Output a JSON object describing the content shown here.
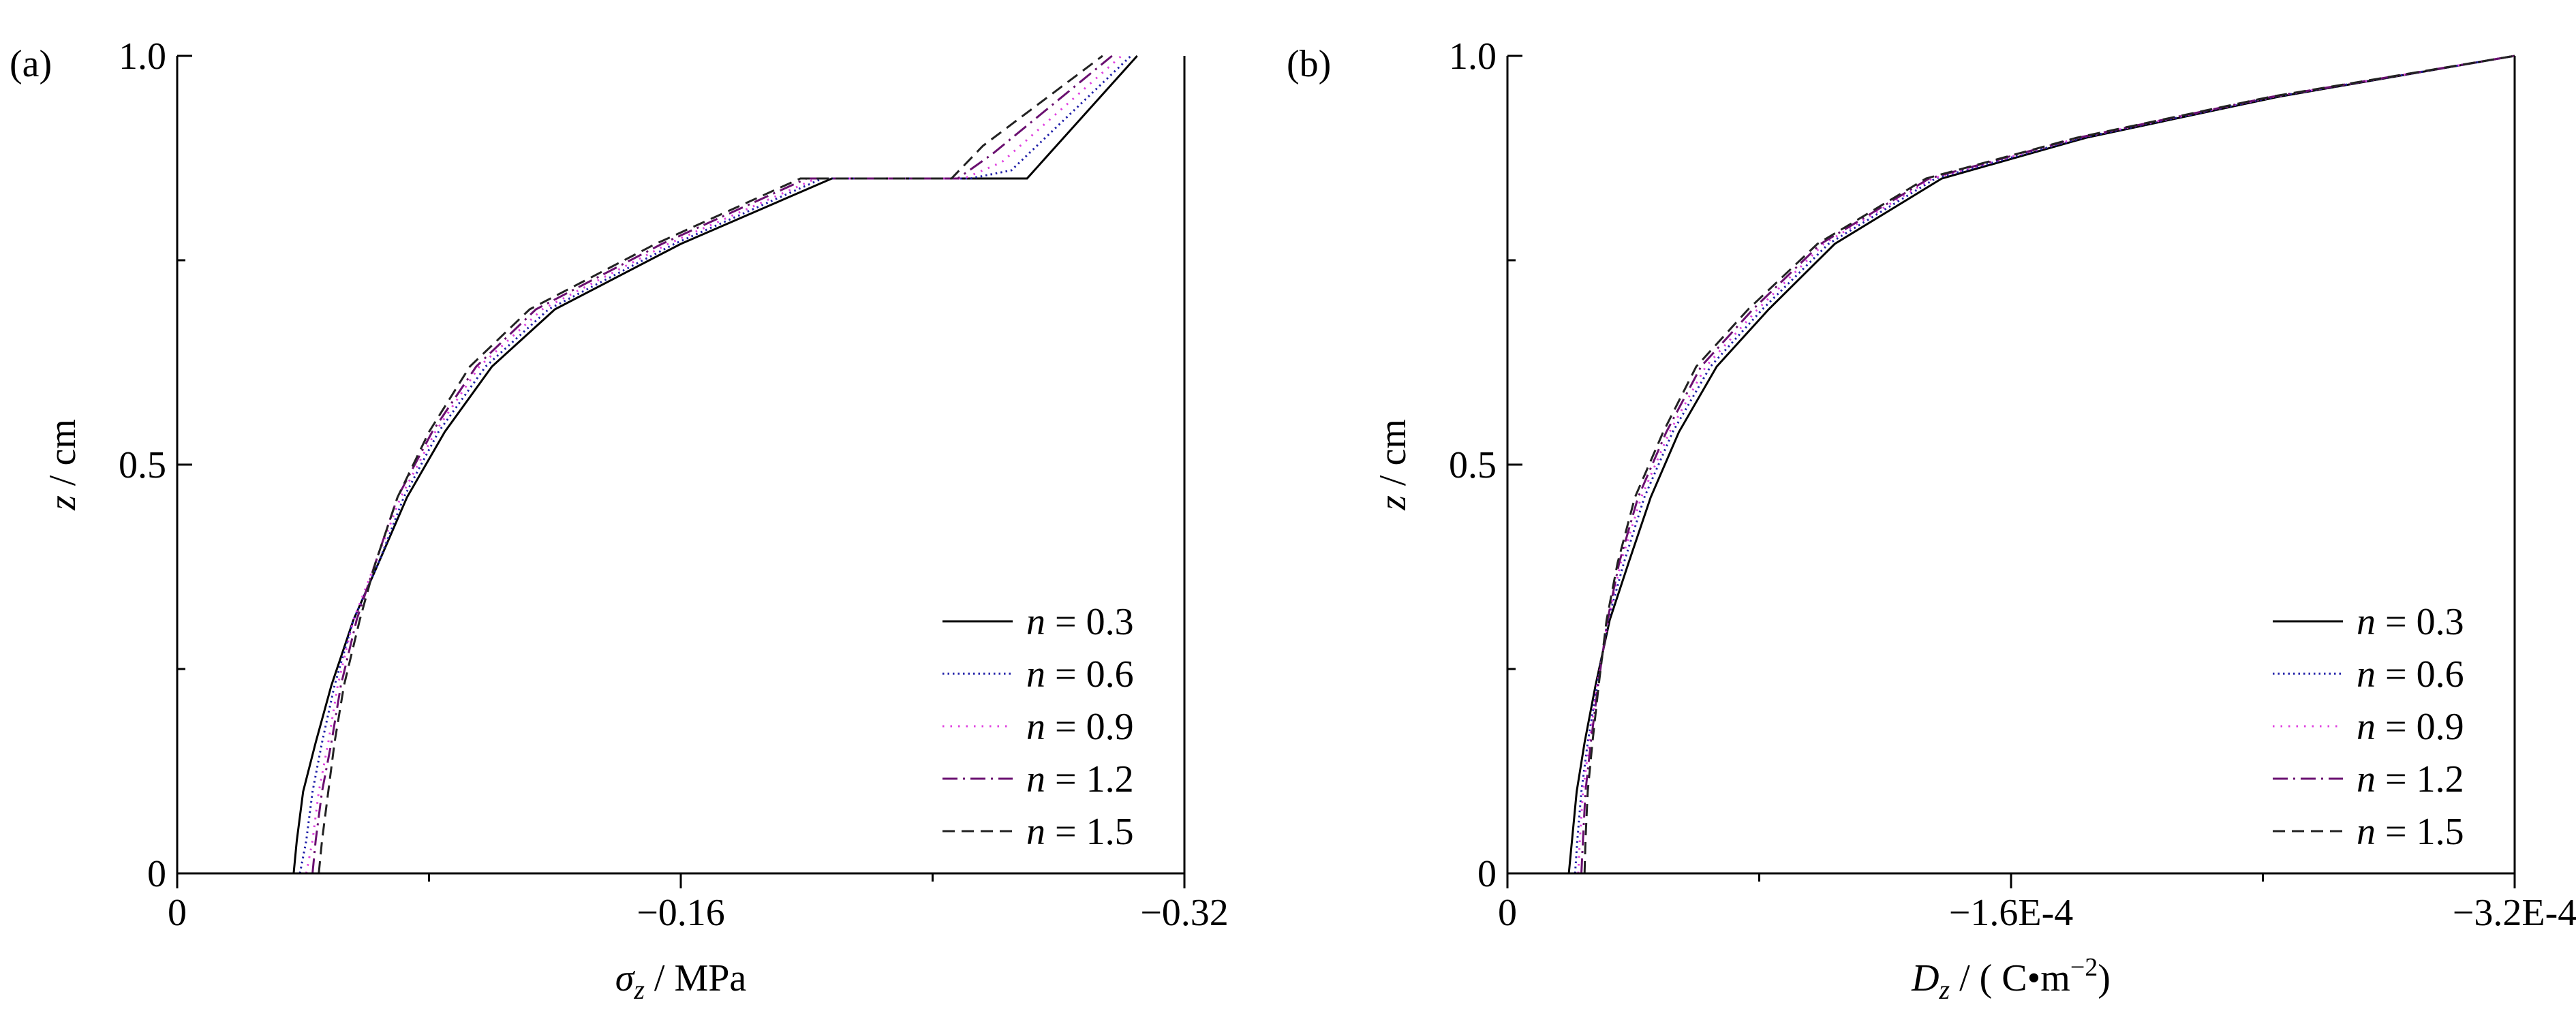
{
  "chart_data": [
    {
      "panel_label": "(a)",
      "type": "line",
      "xlabel_var": "σ",
      "xlabel_sub": "z",
      "xlabel_unit": " / MPa",
      "ylabel_var": "z",
      "ylabel_unit": " / cm",
      "xlim": [
        0,
        -0.32
      ],
      "ylim": [
        0,
        1.0
      ],
      "xticks": [
        0,
        -0.16,
        -0.32
      ],
      "xtick_labels": [
        "0",
        "-0.16",
        "-0.32"
      ],
      "xticks_minor": [
        -0.08,
        -0.24
      ],
      "yticks": [
        0,
        0.5,
        1.0
      ],
      "ytick_labels": [
        "0",
        "0.5",
        "1.0"
      ],
      "yticks_minor": [
        0.25,
        0.75
      ],
      "grid": false,
      "legend_position": "bottom-right",
      "series": [
        {
          "name": "n = 0.3",
          "label_var": "n",
          "label_eq": " = ",
          "label_value": "0.3",
          "style": "solid",
          "color": "#000000",
          "x": [
            -0.037,
            -0.038,
            -0.04,
            -0.044,
            -0.049,
            -0.056,
            -0.064,
            -0.073,
            -0.085,
            -0.1,
            -0.12,
            -0.16,
            -0.208,
            -0.253,
            -0.27,
            -0.305
          ],
          "y": [
            0.0,
            0.04,
            0.1,
            0.16,
            0.23,
            0.31,
            0.38,
            0.46,
            0.54,
            0.62,
            0.69,
            0.77,
            0.85,
            0.85,
            0.85,
            1.0
          ]
        },
        {
          "name": "n = 0.6",
          "label_var": "n",
          "label_eq": " = ",
          "label_value": "0.6",
          "style": "dotted",
          "color": "#1f1fa8",
          "x": [
            -0.039,
            -0.041,
            -0.043,
            -0.046,
            -0.05,
            -0.056,
            -0.064,
            -0.072,
            -0.083,
            -0.098,
            -0.118,
            -0.158,
            -0.205,
            -0.252,
            -0.265,
            -0.303
          ],
          "y": [
            0.0,
            0.04,
            0.1,
            0.16,
            0.23,
            0.31,
            0.38,
            0.46,
            0.54,
            0.62,
            0.69,
            0.77,
            0.85,
            0.85,
            0.86,
            1.0
          ]
        },
        {
          "name": "n = 0.9",
          "label_var": "n",
          "label_eq": " = ",
          "label_value": "0.9",
          "style": "dotted-dense",
          "color": "#e040e0",
          "x": [
            -0.041,
            -0.043,
            -0.045,
            -0.048,
            -0.051,
            -0.056,
            -0.063,
            -0.071,
            -0.082,
            -0.096,
            -0.116,
            -0.156,
            -0.203,
            -0.25,
            -0.262,
            -0.3
          ],
          "y": [
            0.0,
            0.04,
            0.1,
            0.16,
            0.23,
            0.31,
            0.38,
            0.46,
            0.54,
            0.62,
            0.69,
            0.77,
            0.85,
            0.85,
            0.87,
            1.0
          ]
        },
        {
          "name": "n = 1.2",
          "label_var": "n",
          "label_eq": " = ",
          "label_value": "1.2",
          "style": "dashdot",
          "color": "#6a1070",
          "x": [
            -0.043,
            -0.044,
            -0.046,
            -0.049,
            -0.052,
            -0.057,
            -0.063,
            -0.07,
            -0.081,
            -0.095,
            -0.114,
            -0.154,
            -0.2,
            -0.248,
            -0.259,
            -0.297
          ],
          "y": [
            0.0,
            0.04,
            0.1,
            0.16,
            0.23,
            0.31,
            0.38,
            0.46,
            0.54,
            0.62,
            0.69,
            0.77,
            0.85,
            0.85,
            0.88,
            1.0
          ]
        },
        {
          "name": "n = 1.5",
          "label_var": "n",
          "label_eq": " = ",
          "label_value": "1.5",
          "style": "dashed",
          "color": "#222222",
          "x": [
            -0.045,
            -0.046,
            -0.048,
            -0.05,
            -0.053,
            -0.058,
            -0.063,
            -0.07,
            -0.08,
            -0.093,
            -0.112,
            -0.152,
            -0.198,
            -0.246,
            -0.256,
            -0.294
          ],
          "y": [
            0.0,
            0.04,
            0.1,
            0.16,
            0.23,
            0.31,
            0.38,
            0.46,
            0.54,
            0.62,
            0.69,
            0.77,
            0.85,
            0.85,
            0.89,
            1.0
          ]
        }
      ]
    },
    {
      "panel_label": "(b)",
      "type": "line",
      "xlabel_var": "D",
      "xlabel_sub": "z",
      "xlabel_unit": " / ( C•m",
      "xlabel_sup": "−2",
      "xlabel_tail": ")",
      "ylabel_var": "z",
      "ylabel_unit": " / cm",
      "xlim": [
        0,
        -0.00032
      ],
      "ylim": [
        0,
        1.0
      ],
      "xticks": [
        0,
        -0.00016,
        -0.00032
      ],
      "xtick_labels": [
        "0",
        "-1.6E-4",
        "-3.2E-4"
      ],
      "xticks_minor": [
        -8e-05,
        -0.00024
      ],
      "yticks": [
        0,
        0.5,
        1.0
      ],
      "ytick_labels": [
        "0",
        "0.5",
        "1.0"
      ],
      "yticks_minor": [
        0.25,
        0.75
      ],
      "grid": false,
      "legend_position": "bottom-right",
      "series": [
        {
          "name": "n = 0.3",
          "label_var": "n",
          "label_eq": " = ",
          "label_value": "0.3",
          "style": "solid",
          "color": "#000000",
          "x": [
            -1.95e-05,
            -2.05e-05,
            -2.2e-05,
            -2.45e-05,
            -2.8e-05,
            -3.25e-05,
            -3.85e-05,
            -4.55e-05,
            -5.45e-05,
            -6.65e-05,
            -8.3e-05,
            -0.000104,
            -0.000138,
            -0.000184,
            -0.000245,
            -0.00032
          ],
          "y": [
            0.0,
            0.04,
            0.1,
            0.16,
            0.23,
            0.31,
            0.38,
            0.46,
            0.54,
            0.62,
            0.69,
            0.77,
            0.85,
            0.9,
            0.95,
            1.0
          ]
        },
        {
          "name": "n = 0.6",
          "label_var": "n",
          "label_eq": " = ",
          "label_value": "0.6",
          "style": "dotted",
          "color": "#1f1fa8",
          "x": [
            -2.15e-05,
            -2.22e-05,
            -2.35e-05,
            -2.55e-05,
            -2.85e-05,
            -3.2e-05,
            -3.7e-05,
            -4.35e-05,
            -5.25e-05,
            -6.45e-05,
            -8.1e-05,
            -0.000102,
            -0.000136,
            -0.000183,
            -0.000244,
            -0.00032
          ],
          "y": [
            0.0,
            0.04,
            0.1,
            0.16,
            0.23,
            0.31,
            0.38,
            0.46,
            0.54,
            0.62,
            0.69,
            0.77,
            0.85,
            0.9,
            0.95,
            1.0
          ]
        },
        {
          "name": "n = 0.9",
          "label_var": "n",
          "label_eq": " = ",
          "label_value": "0.9",
          "style": "dotted-dense",
          "color": "#e040e0",
          "x": [
            -2.25e-05,
            -2.3e-05,
            -2.4e-05,
            -2.6e-05,
            -2.85e-05,
            -3.2e-05,
            -3.6e-05,
            -4.25e-05,
            -5.15e-05,
            -6.3e-05,
            -7.95e-05,
            -0.0001005,
            -0.000135,
            -0.000182,
            -0.0002435,
            -0.00032
          ],
          "y": [
            0.0,
            0.04,
            0.1,
            0.16,
            0.23,
            0.31,
            0.38,
            0.46,
            0.54,
            0.62,
            0.69,
            0.77,
            0.85,
            0.9,
            0.95,
            1.0
          ]
        },
        {
          "name": "n = 1.2",
          "label_var": "n",
          "label_eq": " = ",
          "label_value": "1.2",
          "style": "dashdot",
          "color": "#6a1070",
          "x": [
            -2.35e-05,
            -2.4e-05,
            -2.48e-05,
            -2.65e-05,
            -2.88e-05,
            -3.18e-05,
            -3.55e-05,
            -4.15e-05,
            -5.05e-05,
            -6.15e-05,
            -7.8e-05,
            -9.95e-05,
            -0.000134,
            -0.0001815,
            -0.000243,
            -0.00032
          ],
          "y": [
            0.0,
            0.04,
            0.1,
            0.16,
            0.23,
            0.31,
            0.38,
            0.46,
            0.54,
            0.62,
            0.69,
            0.77,
            0.85,
            0.9,
            0.95,
            1.0
          ]
        },
        {
          "name": "n = 1.5",
          "label_var": "n",
          "label_eq": " = ",
          "label_value": "1.5",
          "style": "dashed",
          "color": "#222222",
          "x": [
            -2.45e-05,
            -2.48e-05,
            -2.55e-05,
            -2.7e-05,
            -2.9e-05,
            -3.15e-05,
            -3.5e-05,
            -4.05e-05,
            -4.95e-05,
            -6e-05,
            -7.65e-05,
            -9.85e-05,
            -0.000133,
            -0.000181,
            -0.0002425,
            -0.00032
          ],
          "y": [
            0.0,
            0.04,
            0.1,
            0.16,
            0.23,
            0.31,
            0.38,
            0.46,
            0.54,
            0.62,
            0.69,
            0.77,
            0.85,
            0.9,
            0.95,
            1.0
          ]
        }
      ]
    }
  ]
}
